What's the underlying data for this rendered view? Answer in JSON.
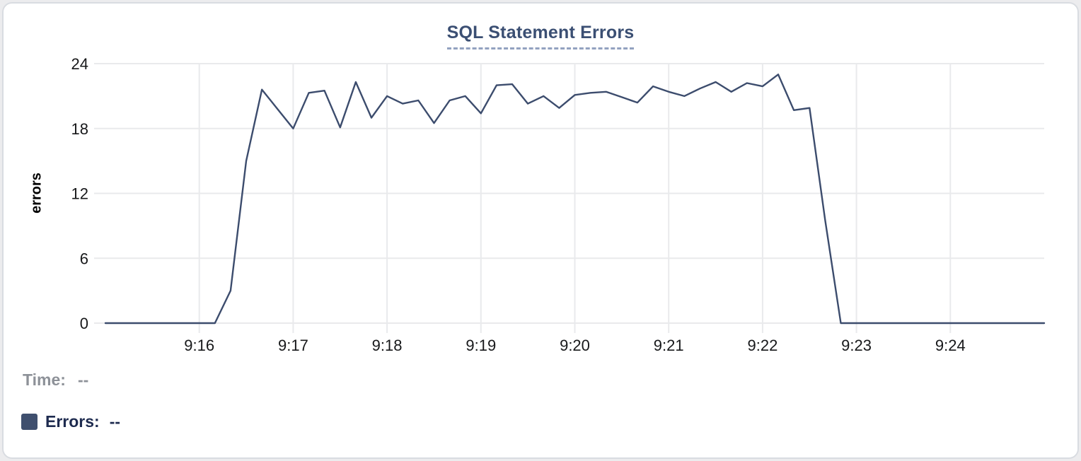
{
  "chart_data": {
    "type": "line",
    "title": "SQL Statement Errors",
    "xlabel": "",
    "ylabel": "errors",
    "ylim": [
      0,
      24
    ],
    "y_ticks": [
      0,
      6,
      12,
      18,
      24
    ],
    "x_start": "9:15:00",
    "x_end": "9:25:00",
    "x_ticks": [
      "9:16",
      "9:17",
      "9:18",
      "9:19",
      "9:20",
      "9:21",
      "9:22",
      "9:23",
      "9:24"
    ],
    "grid": true,
    "legend_position": "bottom-left",
    "line_color": "#3c4c6d",
    "grid_color": "#e9eaec",
    "tick_label_color": "#17181a",
    "series_name": "Errors",
    "points": [
      [
        "9:15:00",
        0
      ],
      [
        "9:15:10",
        0
      ],
      [
        "9:15:20",
        0
      ],
      [
        "9:15:30",
        0
      ],
      [
        "9:15:40",
        0
      ],
      [
        "9:15:50",
        0
      ],
      [
        "9:16:00",
        0
      ],
      [
        "9:16:10",
        0
      ],
      [
        "9:16:20",
        3
      ],
      [
        "9:16:30",
        15
      ],
      [
        "9:16:40",
        21.6
      ],
      [
        "9:16:50",
        19.8
      ],
      [
        "9:17:00",
        18
      ],
      [
        "9:17:10",
        21.3
      ],
      [
        "9:17:20",
        21.5
      ],
      [
        "9:17:30",
        18.1
      ],
      [
        "9:17:40",
        22.3
      ],
      [
        "9:17:50",
        19
      ],
      [
        "9:18:00",
        21
      ],
      [
        "9:18:10",
        20.3
      ],
      [
        "9:18:20",
        20.6
      ],
      [
        "9:18:30",
        18.5
      ],
      [
        "9:18:40",
        20.6
      ],
      [
        "9:18:50",
        21
      ],
      [
        "9:19:00",
        19.4
      ],
      [
        "9:19:10",
        22
      ],
      [
        "9:19:20",
        22.1
      ],
      [
        "9:19:30",
        20.3
      ],
      [
        "9:19:40",
        21
      ],
      [
        "9:19:50",
        19.9
      ],
      [
        "9:20:00",
        21.1
      ],
      [
        "9:20:10",
        21.3
      ],
      [
        "9:20:20",
        21.4
      ],
      [
        "9:20:30",
        20.9
      ],
      [
        "9:20:40",
        20.4
      ],
      [
        "9:20:50",
        21.9
      ],
      [
        "9:21:00",
        21.4
      ],
      [
        "9:21:10",
        21
      ],
      [
        "9:21:20",
        21.7
      ],
      [
        "9:21:30",
        22.3
      ],
      [
        "9:21:40",
        21.4
      ],
      [
        "9:21:50",
        22.2
      ],
      [
        "9:22:00",
        21.9
      ],
      [
        "9:22:10",
        23
      ],
      [
        "9:22:20",
        19.7
      ],
      [
        "9:22:30",
        19.9
      ],
      [
        "9:22:40",
        9.5
      ],
      [
        "9:22:50",
        0
      ],
      [
        "9:23:00",
        0
      ],
      [
        "9:23:10",
        0
      ],
      [
        "9:23:20",
        0
      ],
      [
        "9:23:30",
        0
      ],
      [
        "9:23:40",
        0
      ],
      [
        "9:23:50",
        0
      ],
      [
        "9:24:00",
        0
      ],
      [
        "9:24:10",
        0
      ],
      [
        "9:24:20",
        0
      ],
      [
        "9:24:30",
        0
      ],
      [
        "9:24:40",
        0
      ],
      [
        "9:24:50",
        0
      ],
      [
        "9:25:00",
        0
      ]
    ]
  },
  "tooltip": {
    "time_label": "Time:",
    "time_value": "--",
    "errors_label": "Errors:",
    "errors_value": "--"
  },
  "colors": {
    "legend_swatch": "#3f4f6e",
    "title": "#3b4f73"
  }
}
